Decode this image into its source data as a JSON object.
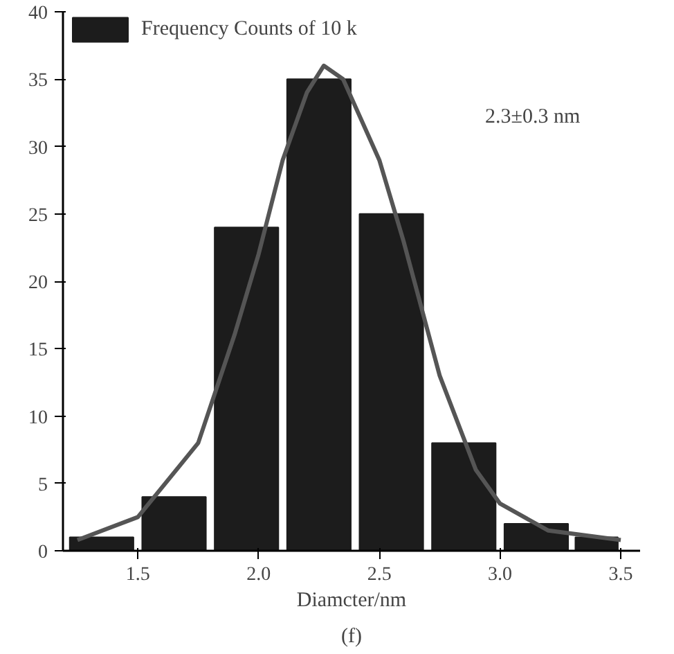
{
  "chart_data": {
    "type": "histogram",
    "xlabel": "Diamcter/nm",
    "xlim": [
      1.19,
      3.58
    ],
    "xticks": [
      {
        "value": 1.5,
        "label": "1.5"
      },
      {
        "value": 2.0,
        "label": "2.0"
      },
      {
        "value": 2.5,
        "label": "2.5"
      },
      {
        "value": 3.0,
        "label": "3.0"
      },
      {
        "value": 3.5,
        "label": "3.5"
      }
    ],
    "ylim": [
      0,
      40
    ],
    "yticks": [
      0,
      5,
      10,
      15,
      20,
      25,
      30,
      35,
      40
    ],
    "legend": "top left",
    "grid": false,
    "series": [
      {
        "name": "Frequency Counts of 10 k",
        "color": "#1c1c1c",
        "bins": [
          1.2,
          1.5,
          1.8,
          2.1,
          2.4,
          2.7,
          3.0,
          3.3,
          3.5
        ],
        "values": [
          1,
          4,
          24,
          35,
          25,
          8,
          2,
          1
        ]
      },
      {
        "type": "line",
        "color": "#555555",
        "x": [
          1.25,
          1.5,
          1.75,
          1.9,
          2.0,
          2.1,
          2.2,
          2.27,
          2.35,
          2.45,
          2.5,
          2.6,
          2.75,
          2.9,
          3.0,
          3.2,
          3.5
        ],
        "values": [
          0.8,
          2.5,
          8,
          16,
          22,
          29,
          34,
          36,
          35,
          31,
          29,
          23,
          13,
          6,
          3.5,
          1.5,
          0.8
        ]
      }
    ],
    "annotations": [
      "2.3±0.3 nm",
      "(f)"
    ]
  }
}
